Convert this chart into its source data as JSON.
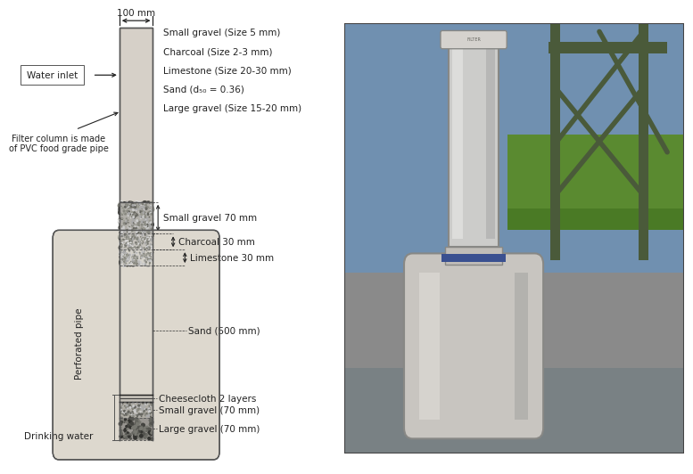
{
  "bg_color": "#ffffff",
  "labels": {
    "water_inlet": "Water inlet",
    "filter_column": "Filter column is made\nof PVC food grade pipe",
    "perforated_pipe": "Perforated pipe",
    "drinking_water": "Drinking water",
    "width_label": "100 mm",
    "sand_label": "Sand (500 mm)",
    "right_labels_top": [
      "Small gravel (Size 5 mm)",
      "Charcoal (Size 2-3 mm)",
      "Limestone (Size 20-30 mm)",
      "Sand (d₅₀ = 0.36)",
      "Large gravel (Size 15-20 mm)"
    ],
    "right_labels_mid": [
      "Small gravel 70 mm",
      "Charcoal 30 mm",
      "Limestone 30 mm"
    ],
    "right_labels_bot": [
      "Cheesecloth 2 layers",
      "Small gravel (70 mm)",
      "Large gravel (70 mm)"
    ]
  }
}
